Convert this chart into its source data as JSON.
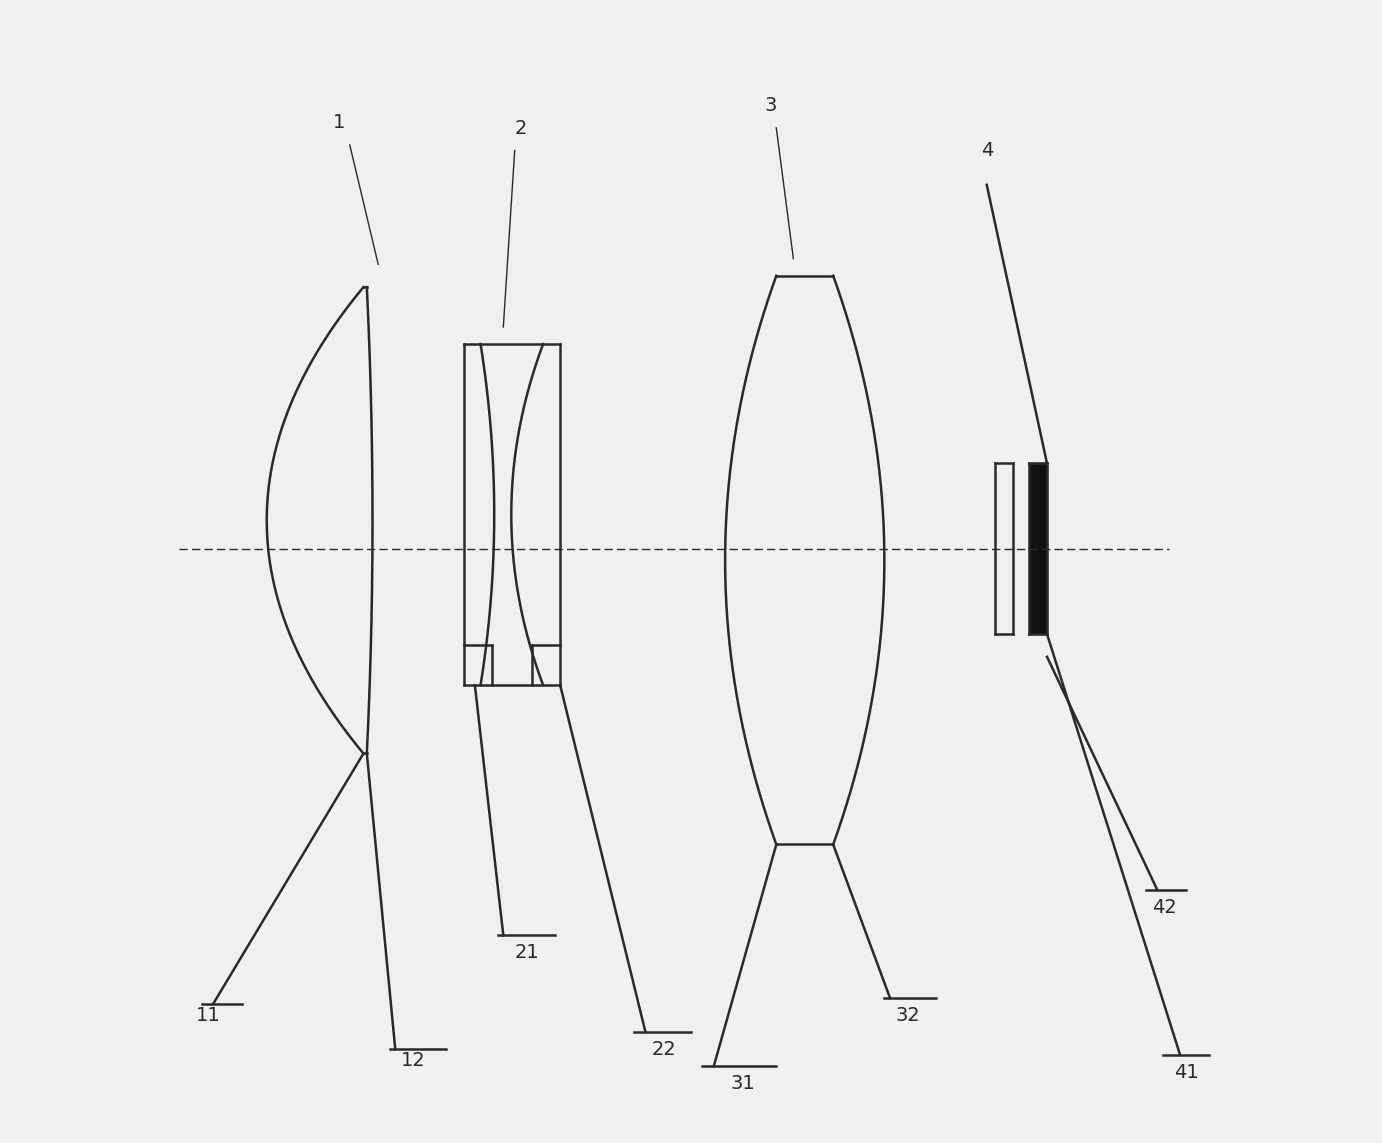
{
  "background_color": "#f0f0f0",
  "line_color": "#2a2a2a",
  "figsize": [
    13.82,
    11.43
  ],
  "dpi": 100
}
